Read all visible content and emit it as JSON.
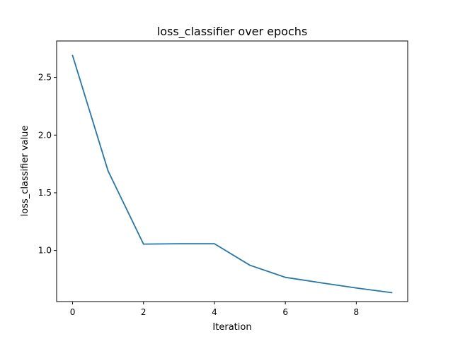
{
  "chart_data": {
    "type": "line",
    "title": "loss_classifier over epochs",
    "xlabel": "Iteration",
    "ylabel": "loss_classifier value",
    "xlim": [
      -0.45,
      9.45
    ],
    "ylim": [
      0.557,
      2.816
    ],
    "xticks": [
      0,
      2,
      4,
      6,
      8
    ],
    "xtick_labels": [
      "0",
      "2",
      "4",
      "6",
      "8"
    ],
    "yticks": [
      1.0,
      1.5,
      2.0,
      2.5
    ],
    "ytick_labels": [
      "1.0",
      "1.5",
      "2.0",
      "2.5"
    ],
    "grid": false,
    "legend": "none",
    "series": [
      {
        "color": "#1f77b4",
        "x": [
          0,
          1,
          2,
          3,
          4,
          5,
          6,
          7,
          8,
          9
        ],
        "y": [
          2.69,
          1.69,
          1.055,
          1.058,
          1.058,
          0.872,
          0.767,
          0.72,
          0.675,
          0.634
        ]
      }
    ]
  }
}
